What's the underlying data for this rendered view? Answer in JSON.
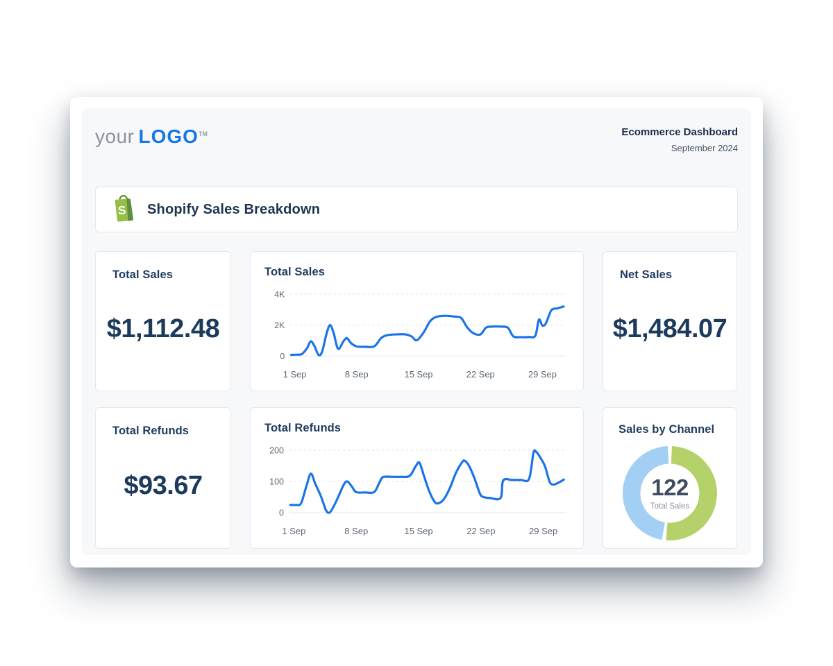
{
  "header": {
    "logo": {
      "prefix": "your",
      "brand": "LOGO",
      "tm": "TM"
    },
    "title": "Ecommerce Dashboard",
    "period": "September 2024"
  },
  "section": {
    "title": "Shopify Sales Breakdown",
    "icon": "shopify-bag"
  },
  "stats": {
    "total_sales": {
      "title": "Total Sales",
      "value": "$1,112.48"
    },
    "net_sales": {
      "title": "Net Sales",
      "value": "$1,484.07"
    },
    "total_refunds": {
      "title": "Total Refunds",
      "value": "$93.67"
    }
  },
  "colors": {
    "accent_blue": "#1a74e8",
    "brand_blue": "#1776e8",
    "navy": "#1c3a5c",
    "grid": "#dcdfe4",
    "donut_blue": "#a3cff5",
    "donut_green": "#b5d169",
    "shopify_green": "#95BF47",
    "shopify_dark_green": "#5E8E3E"
  },
  "chart_data": [
    {
      "type": "line",
      "title": "Total Sales",
      "color": "#1a74e8",
      "ylim": [
        0,
        4000
      ],
      "yticks": [
        {
          "value": 0,
          "label": "0"
        },
        {
          "value": 2000,
          "label": "2K"
        },
        {
          "value": 4000,
          "label": "4K"
        }
      ],
      "xticks": [
        {
          "day": 1,
          "label": "1 Sep"
        },
        {
          "day": 8,
          "label": "8 Sep"
        },
        {
          "day": 15,
          "label": "15 Sep"
        },
        {
          "day": 22,
          "label": "22 Sep"
        },
        {
          "day": 29,
          "label": "29 Sep"
        }
      ],
      "points": [
        [
          0.6,
          80
        ],
        [
          1.2,
          95
        ],
        [
          1.8,
          130
        ],
        [
          2.4,
          520
        ],
        [
          2.8,
          950
        ],
        [
          3.2,
          680
        ],
        [
          3.7,
          70
        ],
        [
          4.1,
          300
        ],
        [
          4.6,
          1450
        ],
        [
          5.0,
          2000
        ],
        [
          5.4,
          1480
        ],
        [
          5.9,
          470
        ],
        [
          6.5,
          950
        ],
        [
          6.9,
          1150
        ],
        [
          7.4,
          820
        ],
        [
          8.0,
          620
        ],
        [
          9.0,
          600
        ],
        [
          10.0,
          630
        ],
        [
          10.8,
          1180
        ],
        [
          11.5,
          1350
        ],
        [
          12.5,
          1400
        ],
        [
          13.5,
          1400
        ],
        [
          14.2,
          1270
        ],
        [
          14.8,
          1020
        ],
        [
          15.6,
          1550
        ],
        [
          16.3,
          2250
        ],
        [
          17.0,
          2530
        ],
        [
          18.0,
          2600
        ],
        [
          19.0,
          2550
        ],
        [
          19.8,
          2460
        ],
        [
          20.5,
          1850
        ],
        [
          21.2,
          1470
        ],
        [
          22.0,
          1400
        ],
        [
          22.6,
          1820
        ],
        [
          23.2,
          1900
        ],
        [
          24.4,
          1900
        ],
        [
          25.1,
          1820
        ],
        [
          25.7,
          1280
        ],
        [
          26.5,
          1220
        ],
        [
          27.5,
          1230
        ],
        [
          28.2,
          1320
        ],
        [
          28.6,
          2350
        ],
        [
          29.0,
          1970
        ],
        [
          29.4,
          2130
        ],
        [
          30.0,
          2950
        ],
        [
          30.7,
          3080
        ],
        [
          31.4,
          3200
        ]
      ]
    },
    {
      "type": "line",
      "title": "Total Refunds",
      "color": "#1a74e8",
      "ylim": [
        0,
        200
      ],
      "yticks": [
        {
          "value": 0,
          "label": "0"
        },
        {
          "value": 100,
          "label": "100"
        },
        {
          "value": 200,
          "label": "200"
        }
      ],
      "xticks": [
        {
          "day": 1,
          "label": "1 Sep"
        },
        {
          "day": 8,
          "label": "8 Sep"
        },
        {
          "day": 15,
          "label": "15 Sep"
        },
        {
          "day": 22,
          "label": "22 Sep"
        },
        {
          "day": 29,
          "label": "29 Sep"
        }
      ],
      "points": [
        [
          0.6,
          25
        ],
        [
          1.2,
          25
        ],
        [
          1.8,
          30
        ],
        [
          2.4,
          85
        ],
        [
          2.9,
          125
        ],
        [
          3.4,
          92
        ],
        [
          4.0,
          55
        ],
        [
          4.6,
          8
        ],
        [
          5.0,
          0
        ],
        [
          5.5,
          22
        ],
        [
          6.0,
          52
        ],
        [
          6.6,
          90
        ],
        [
          7.0,
          100
        ],
        [
          7.5,
          84
        ],
        [
          8.0,
          66
        ],
        [
          9.0,
          65
        ],
        [
          10.0,
          66
        ],
        [
          10.6,
          96
        ],
        [
          11.0,
          114
        ],
        [
          12.0,
          115
        ],
        [
          13.0,
          115
        ],
        [
          14.0,
          118
        ],
        [
          14.7,
          150
        ],
        [
          15.1,
          160
        ],
        [
          15.6,
          118
        ],
        [
          16.2,
          68
        ],
        [
          16.8,
          35
        ],
        [
          17.2,
          30
        ],
        [
          17.8,
          42
        ],
        [
          18.5,
          78
        ],
        [
          19.2,
          128
        ],
        [
          19.9,
          162
        ],
        [
          20.2,
          166
        ],
        [
          20.7,
          148
        ],
        [
          21.3,
          108
        ],
        [
          21.9,
          60
        ],
        [
          22.3,
          50
        ],
        [
          23.0,
          47
        ],
        [
          24.2,
          47
        ],
        [
          24.5,
          103
        ],
        [
          25.5,
          105
        ],
        [
          26.5,
          105
        ],
        [
          27.4,
          108
        ],
        [
          27.9,
          192
        ],
        [
          28.2,
          195
        ],
        [
          28.7,
          175
        ],
        [
          29.2,
          148
        ],
        [
          29.7,
          100
        ],
        [
          30.1,
          90
        ],
        [
          30.7,
          96
        ],
        [
          31.3,
          106
        ]
      ]
    },
    {
      "type": "donut",
      "title": "Sales by Channel",
      "center_value": "122",
      "center_label": "Total Sales",
      "segments": [
        {
          "name": "segment-green",
          "value": 52,
          "color": "#b5d169"
        },
        {
          "name": "segment-blue",
          "value": 48,
          "color": "#a3cff5"
        }
      ]
    }
  ]
}
